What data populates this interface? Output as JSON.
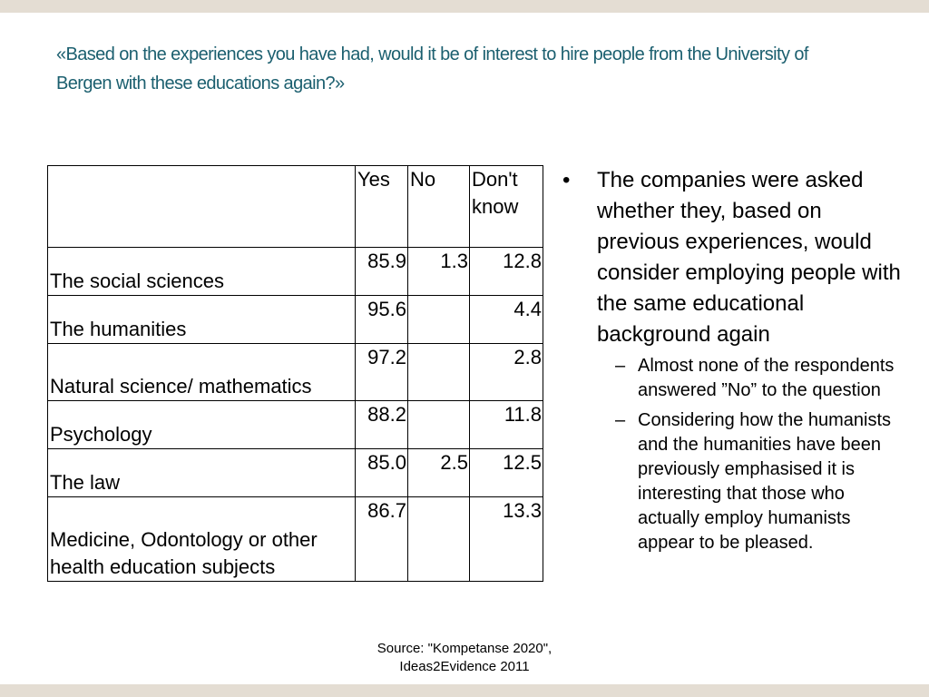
{
  "title": "«Based on the experiences you have had, would it be of interest to hire people from the University of Bergen with these educations again?»",
  "table": {
    "header": [
      null,
      "Yes",
      "No",
      "Don't know"
    ],
    "rows": [
      [
        "The social sciences",
        "85.9",
        "1.3",
        "12.8"
      ],
      [
        "The humanities",
        "95.6",
        null,
        "4.4"
      ],
      [
        "Natural science/ mathematics",
        "97.2",
        null,
        "2.8"
      ],
      [
        "Psychology",
        "88.2",
        null,
        "11.8"
      ],
      [
        "The law",
        "85.0",
        "2.5",
        "12.5"
      ],
      [
        "Medicine, Odontology or other health education subjects",
        "86.7",
        null,
        "13.3"
      ]
    ]
  },
  "bullets": [
    {
      "text": "The companies were asked whether they, based on previous experiences, would consider employing people with the same educational background again",
      "sub": [
        "Almost none of the respondents answered ”No” to the question",
        "Considering how the humanists and the humanities have been previously emphasised it is interesting that those who actually employ humanists appear to be pleased."
      ]
    }
  ],
  "source": "Source: \"Kompetanse 2020\", Ideas2Evidence 2011"
}
